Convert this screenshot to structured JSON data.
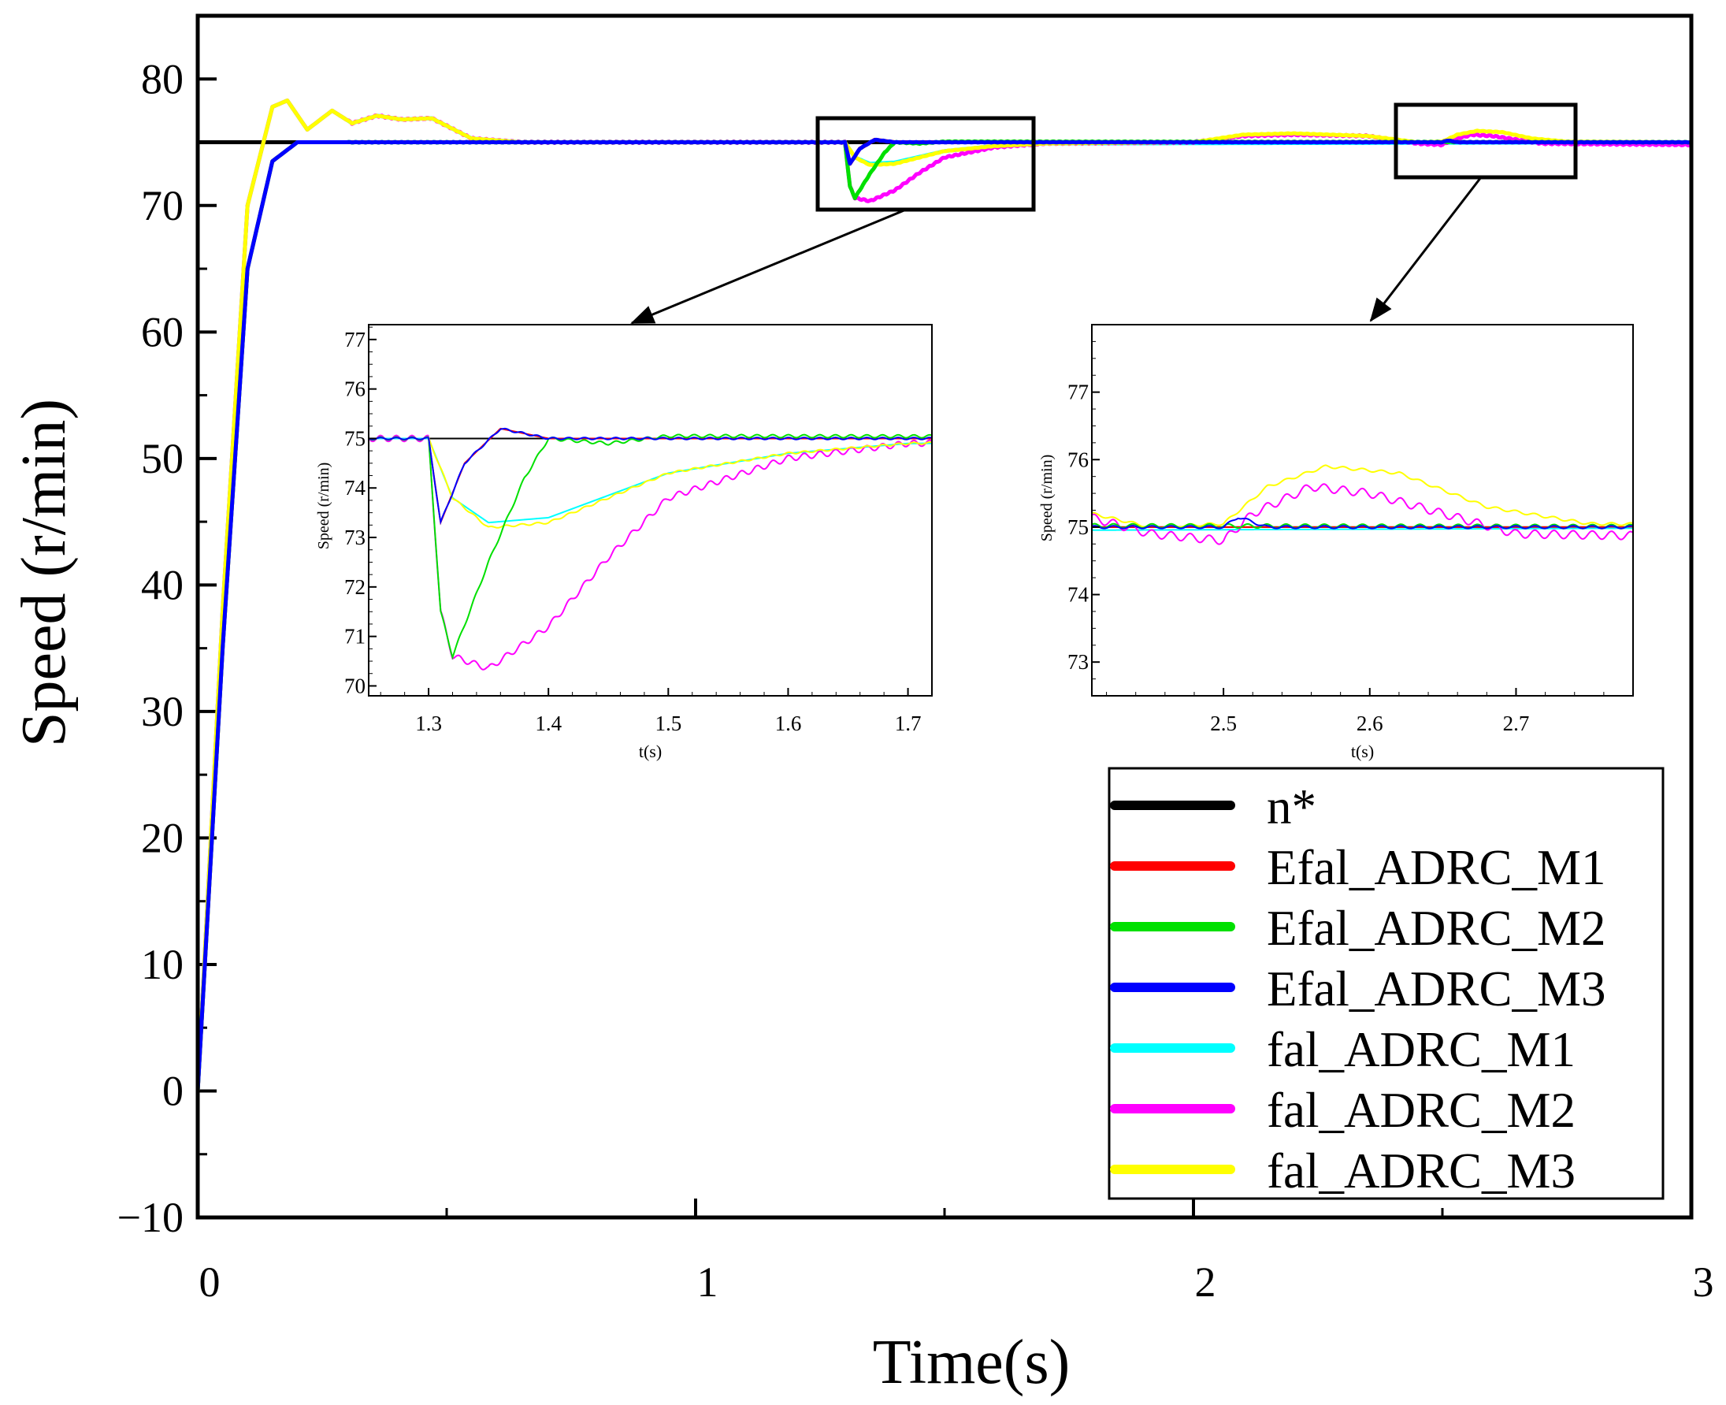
{
  "chart_data": {
    "type": "line",
    "main": {
      "xlabel": "Time(s)",
      "ylabel": "Speed (r/min)",
      "xlim": [
        0,
        3
      ],
      "ylim": [
        -10,
        85
      ],
      "xticks": [
        0,
        1,
        2,
        3
      ],
      "yticks": [
        -10,
        0,
        10,
        20,
        30,
        40,
        50,
        60,
        70,
        80
      ],
      "reference": {
        "name": "n*",
        "value": 75
      },
      "series": [
        {
          "name": "Efal_ADRC_M1",
          "color": "#ff0000",
          "points": [
            [
              0,
              0
            ],
            [
              0.05,
              35
            ],
            [
              0.1,
              65
            ],
            [
              0.15,
              73.5
            ],
            [
              0.2,
              75
            ],
            [
              0.3,
              75
            ],
            [
              1.28,
              75
            ],
            [
              1.3,
              75
            ],
            [
              1.31,
              73.3
            ],
            [
              1.33,
              74.5
            ],
            [
              1.36,
              75.2
            ],
            [
              1.4,
              75
            ],
            [
              3,
              75
            ]
          ]
        },
        {
          "name": "Efal_ADRC_M2",
          "color": "#00e000",
          "points": [
            [
              0,
              0
            ],
            [
              0.05,
              35
            ],
            [
              0.1,
              65
            ],
            [
              0.15,
              73.5
            ],
            [
              0.2,
              75
            ],
            [
              0.3,
              75
            ],
            [
              1.28,
              75
            ],
            [
              1.3,
              75
            ],
            [
              1.31,
              71.5
            ],
            [
              1.32,
              70.6
            ],
            [
              1.35,
              72.5
            ],
            [
              1.38,
              74.2
            ],
            [
              1.4,
              75
            ],
            [
              1.45,
              74.9
            ],
            [
              1.5,
              75.05
            ],
            [
              3,
              75
            ]
          ]
        },
        {
          "name": "Efal_ADRC_M3",
          "color": "#0000ff",
          "points": [
            [
              0,
              0
            ],
            [
              0.05,
              35
            ],
            [
              0.1,
              65
            ],
            [
              0.15,
              73.5
            ],
            [
              0.2,
              75
            ],
            [
              0.3,
              75
            ],
            [
              1.28,
              75
            ],
            [
              1.3,
              75
            ],
            [
              1.31,
              73.3
            ],
            [
              1.33,
              74.5
            ],
            [
              1.36,
              75.2
            ],
            [
              1.4,
              75
            ],
            [
              2.0,
              75
            ],
            [
              2.5,
              75
            ],
            [
              2.51,
              75.15
            ],
            [
              2.53,
              75
            ],
            [
              3,
              75
            ]
          ]
        },
        {
          "name": "fal_ADRC_M1",
          "color": "#00ffff",
          "points": [
            [
              0,
              0
            ],
            [
              0.05,
              38
            ],
            [
              0.1,
              70
            ],
            [
              0.15,
              77.8
            ],
            [
              0.18,
              78.3
            ],
            [
              0.22,
              76
            ],
            [
              0.27,
              77.5
            ],
            [
              0.31,
              76.5
            ],
            [
              0.36,
              77.1
            ],
            [
              0.41,
              76.8
            ],
            [
              0.47,
              76.9
            ],
            [
              0.55,
              75.3
            ],
            [
              0.65,
              75
            ],
            [
              1.28,
              75
            ],
            [
              1.3,
              75
            ],
            [
              1.32,
              73.8
            ],
            [
              1.35,
              73.3
            ],
            [
              1.4,
              73.4
            ],
            [
              1.5,
              74.3
            ],
            [
              1.6,
              74.7
            ],
            [
              1.7,
              74.9
            ],
            [
              3,
              75
            ]
          ]
        },
        {
          "name": "fal_ADRC_M2",
          "color": "#ff00ff",
          "points": [
            [
              0,
              0
            ],
            [
              0.05,
              38
            ],
            [
              0.1,
              70
            ],
            [
              0.15,
              77.8
            ],
            [
              0.18,
              78.3
            ],
            [
              0.22,
              76
            ],
            [
              0.27,
              77.5
            ],
            [
              0.31,
              76.5
            ],
            [
              0.36,
              77.1
            ],
            [
              0.41,
              76.8
            ],
            [
              0.47,
              76.9
            ],
            [
              0.55,
              75.3
            ],
            [
              0.65,
              75
            ],
            [
              1.28,
              75
            ],
            [
              1.3,
              75
            ],
            [
              1.31,
              71.5
            ],
            [
              1.32,
              70.6
            ],
            [
              1.35,
              70.35
            ],
            [
              1.4,
              71.2
            ],
            [
              1.45,
              72.6
            ],
            [
              1.5,
              73.8
            ],
            [
              1.6,
              74.6
            ],
            [
              1.7,
              74.9
            ],
            [
              2.0,
              75
            ],
            [
              2.1,
              75.5
            ],
            [
              2.2,
              75.6
            ],
            [
              2.35,
              75.5
            ],
            [
              2.45,
              74.9
            ],
            [
              2.5,
              74.8
            ],
            [
              2.52,
              75.2
            ],
            [
              2.56,
              75.6
            ],
            [
              2.6,
              75.5
            ],
            [
              2.65,
              75.2
            ],
            [
              2.7,
              74.9
            ],
            [
              3,
              74.8
            ]
          ]
        },
        {
          "name": "fal_ADRC_M3",
          "color": "#ffff00",
          "points": [
            [
              0,
              0
            ],
            [
              0.05,
              38
            ],
            [
              0.1,
              70
            ],
            [
              0.15,
              77.8
            ],
            [
              0.18,
              78.3
            ],
            [
              0.22,
              76
            ],
            [
              0.27,
              77.5
            ],
            [
              0.31,
              76.5
            ],
            [
              0.36,
              77.1
            ],
            [
              0.41,
              76.8
            ],
            [
              0.47,
              76.9
            ],
            [
              0.55,
              75.3
            ],
            [
              0.65,
              75
            ],
            [
              1.28,
              75
            ],
            [
              1.3,
              75
            ],
            [
              1.32,
              73.8
            ],
            [
              1.35,
              73.2
            ],
            [
              1.4,
              73.3
            ],
            [
              1.5,
              74.3
            ],
            [
              1.6,
              74.7
            ],
            [
              1.7,
              74.9
            ],
            [
              2.0,
              75
            ],
            [
              2.1,
              75.6
            ],
            [
              2.2,
              75.7
            ],
            [
              2.35,
              75.5
            ],
            [
              2.45,
              75
            ],
            [
              2.5,
              75.05
            ],
            [
              2.53,
              75.6
            ],
            [
              2.57,
              75.9
            ],
            [
              2.62,
              75.8
            ],
            [
              2.68,
              75.3
            ],
            [
              2.75,
              75.05
            ],
            [
              3,
              75
            ]
          ]
        }
      ]
    },
    "inset1": {
      "xlabel": "t(s)",
      "ylabel": "Speed (r/min)",
      "xlim": [
        1.25,
        1.72
      ],
      "ylim": [
        69.8,
        77.3
      ],
      "xticks": [
        1.3,
        1.4,
        1.5,
        1.6,
        1.7
      ],
      "yticks": [
        70,
        71,
        72,
        73,
        74,
        75,
        76,
        77
      ]
    },
    "inset2": {
      "xlabel": "t(s)",
      "ylabel": "Speed (r/min)",
      "xlim": [
        2.41,
        2.78
      ],
      "ylim": [
        72.5,
        78
      ],
      "xticks": [
        2.5,
        2.6,
        2.7
      ],
      "yticks": [
        73,
        74,
        75,
        76,
        77
      ]
    },
    "legend": {
      "position": "bottom-right",
      "entries": [
        {
          "label": "n*",
          "color": "#000000"
        },
        {
          "label": "Efal_ADRC_M1",
          "color": "#ff0000"
        },
        {
          "label": "Efal_ADRC_M2",
          "color": "#00e000"
        },
        {
          "label": "Efal_ADRC_M3",
          "color": "#0000ff"
        },
        {
          "label": "fal_ADRC_M1",
          "color": "#00ffff"
        },
        {
          "label": "fal_ADRC_M2",
          "color": "#ff00ff"
        },
        {
          "label": "fal_ADRC_M3",
          "color": "#ffff00"
        }
      ]
    }
  }
}
